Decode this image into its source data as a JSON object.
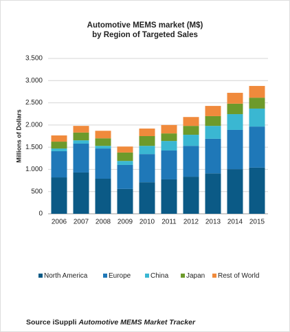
{
  "chart_data": {
    "type": "stacked_bar",
    "title": "Automotive MEMS market (M$)",
    "subtitle": "by Region of Targeted Sales",
    "y_label": "Millions  of Dollars",
    "source": {
      "prefix": "Source iSuppli",
      "title": "Automotive MEMS Market Tracker"
    },
    "categories": [
      "2006",
      "2007",
      "2008",
      "2009",
      "2010",
      "2011",
      "2012",
      "2013",
      "2014",
      "2015"
    ],
    "series": [
      {
        "name": "North America",
        "color": "#0b5a86",
        "values": [
          820,
          930,
          790,
          560,
          710,
          775,
          835,
          910,
          1005,
          1040
        ]
      },
      {
        "name": "Europe",
        "color": "#1f78b8",
        "values": [
          590,
          650,
          680,
          540,
          635,
          650,
          695,
          780,
          885,
          925
        ]
      },
      {
        "name": "China",
        "color": "#3ab7d2",
        "values": [
          60,
          75,
          60,
          90,
          185,
          215,
          250,
          290,
          355,
          405
        ]
      },
      {
        "name": "Japan",
        "color": "#6d9a2b",
        "values": [
          155,
          175,
          170,
          190,
          220,
          170,
          200,
          220,
          235,
          245
        ]
      },
      {
        "name": "Rest of World",
        "color": "#f08a3c",
        "values": [
          140,
          150,
          170,
          135,
          170,
          190,
          200,
          230,
          245,
          265
        ]
      }
    ],
    "ylim": [
      0,
      3500
    ],
    "yticks": [
      0,
      500,
      {
        "value": 1000,
        "label": "1.000"
      },
      {
        "value": 1500,
        "label": "1.500"
      },
      {
        "value": 2000,
        "label": "2.000"
      },
      {
        "value": 2500,
        "label": "2.500"
      },
      {
        "value": 3000,
        "label": "3.000"
      },
      {
        "value": 3500,
        "label": "3.500"
      }
    ],
    "grid": true,
    "legend": "bottom"
  }
}
